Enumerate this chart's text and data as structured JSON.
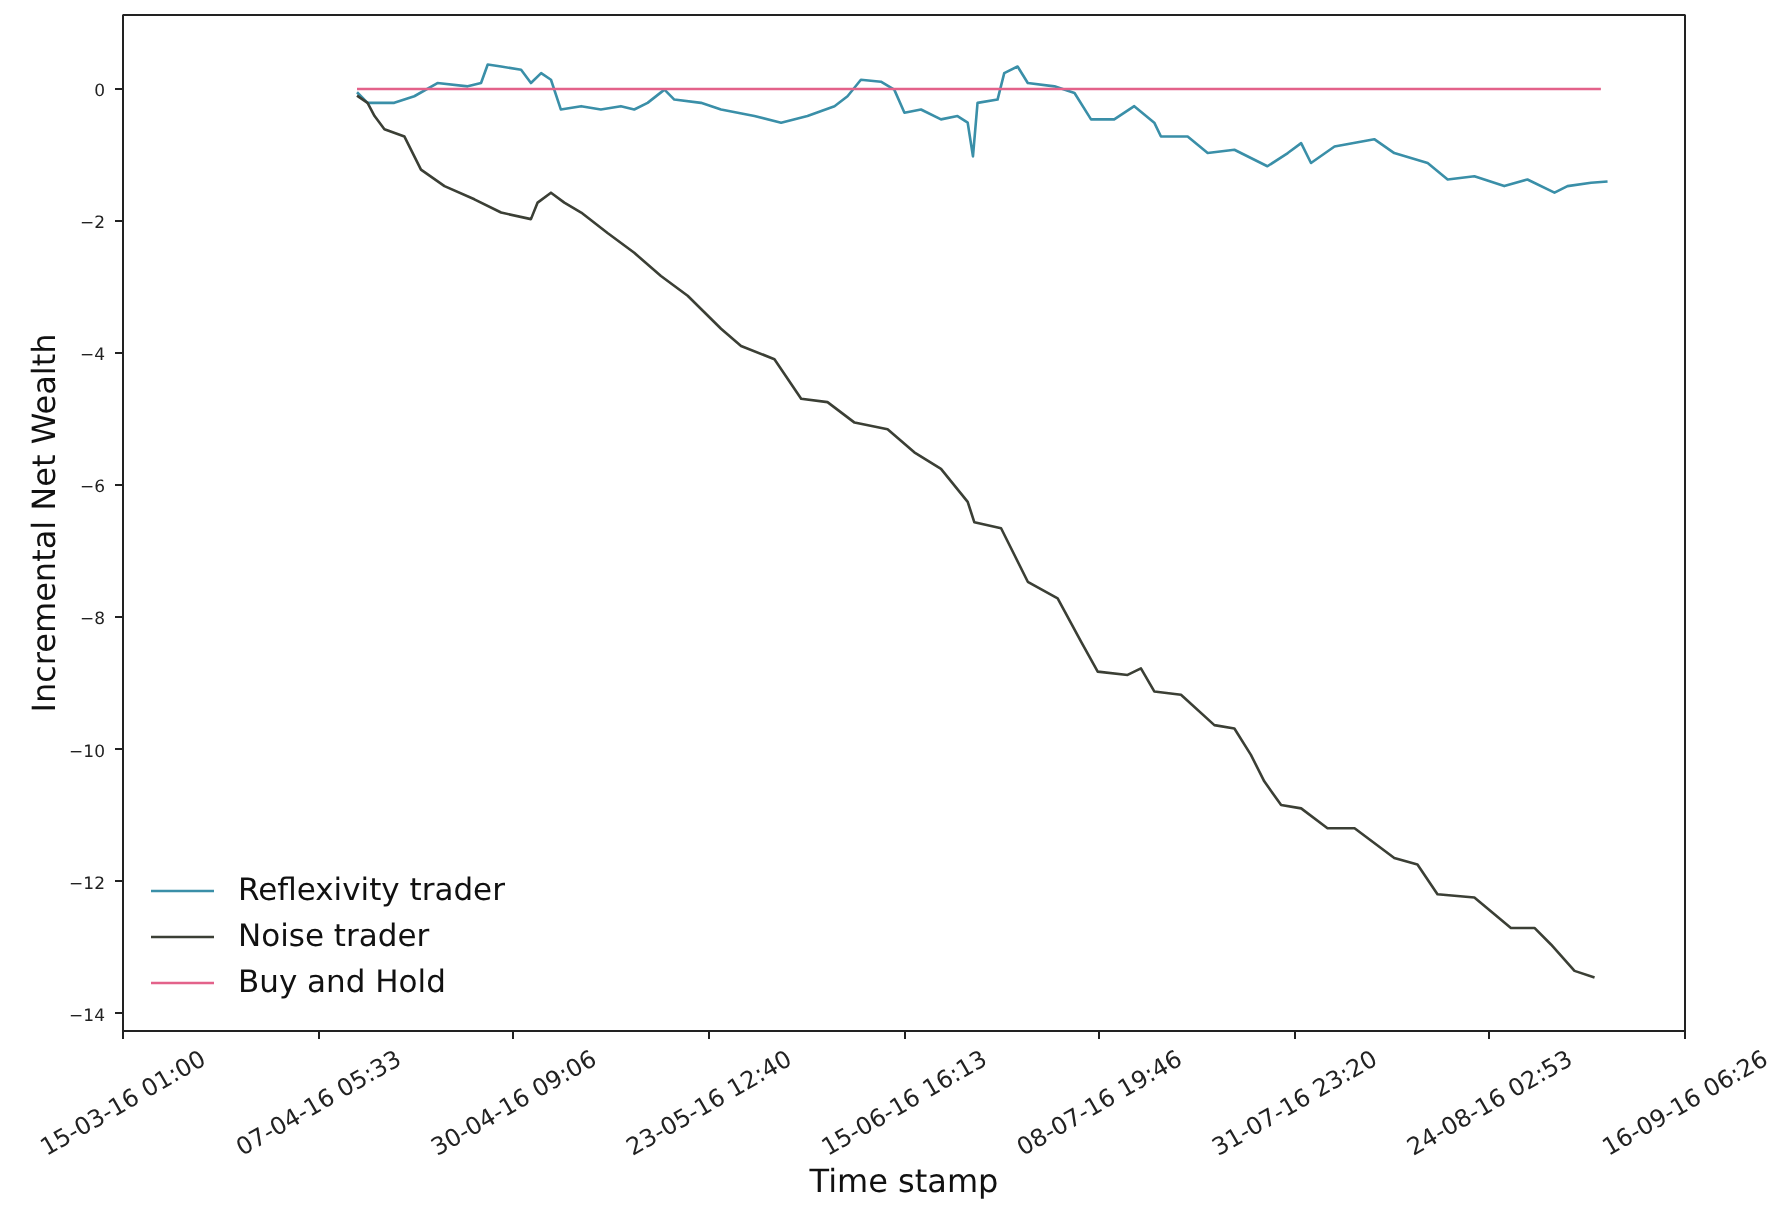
{
  "chart_data": {
    "type": "line",
    "xlabel": "Time stamp",
    "ylabel": "Incremental Net Wealth",
    "xlim": [
      "2016-03-15T01:00",
      "2016-09-16T06:26"
    ],
    "xticks": [
      {
        "value": "2016-03-15T01:00",
        "label": "15-03-16 01:00"
      },
      {
        "value": "2016-04-07T05:33",
        "label": "07-04-16 05:33"
      },
      {
        "value": "2016-04-30T09:06",
        "label": "30-04-16 09:06"
      },
      {
        "value": "2016-05-23T12:40",
        "label": "23-05-16 12:40"
      },
      {
        "value": "2016-06-15T16:13",
        "label": "15-06-16 16:13"
      },
      {
        "value": "2016-07-08T19:46",
        "label": "08-07-16 19:46"
      },
      {
        "value": "2016-07-31T23:20",
        "label": "31-07-16 23:20"
      },
      {
        "value": "2016-08-24T02:53",
        "label": "24-08-16 02:53"
      },
      {
        "value": "2016-09-16T06:26",
        "label": "16-09-16 06:26"
      }
    ],
    "ylim": [
      -14.26,
      1.12
    ],
    "yticks": [
      {
        "value": -14,
        "label": "−14"
      },
      {
        "value": -12,
        "label": "−12"
      },
      {
        "value": -10,
        "label": "−10"
      },
      {
        "value": -8,
        "label": "−8"
      },
      {
        "value": -6,
        "label": "−6"
      },
      {
        "value": -4,
        "label": "−4"
      },
      {
        "value": -2,
        "label": "−2"
      },
      0
    ],
    "legend": "bottom left",
    "series": [
      {
        "name": "Reflexivity trader",
        "color": "#3a8fa8",
        "x": [
          "2016-04-11T19:00",
          "2016-04-13T01:00",
          "2016-04-16T05:00",
          "2016-04-18T14:00",
          "2016-04-21T08:00",
          "2016-04-24T22:00",
          "2016-04-26T12:00",
          "2016-04-27T07:00",
          "2016-04-28T21:00",
          "2016-05-01T06:00",
          "2016-05-02T10:00",
          "2016-05-03T15:00",
          "2016-05-04T19:00",
          "2016-05-05T23:00",
          "2016-05-08T09:00",
          "2016-05-10T17:00",
          "2016-05-13T02:00",
          "2016-05-14T16:00",
          "2016-05-16T06:00",
          "2016-05-18T06:00",
          "2016-05-19T10:00",
          "2016-05-22T14:00",
          "2016-05-24T23:00",
          "2016-05-28T22:00",
          "2016-06-01T02:00",
          "2016-06-04T05:00",
          "2016-06-07T10:00",
          "2016-06-08T23:00",
          "2016-06-10T13:00",
          "2016-06-12T22:00",
          "2016-06-14T12:00",
          "2016-06-15T17:00",
          "2016-06-17T16:00",
          "2016-06-20T01:00",
          "2016-06-22T00:00",
          "2016-06-23T05:00",
          "2016-06-23T20:00",
          "2016-06-24T09:00",
          "2016-06-26T18:00",
          "2016-06-27T13:00",
          "2016-06-29T03:00",
          "2016-06-30T08:00",
          "2016-07-03T12:00",
          "2016-07-05T21:00",
          "2016-07-07T20:00",
          "2016-07-10T14:00",
          "2016-07-12T23:00",
          "2016-07-15T08:00",
          "2016-07-16T03:00",
          "2016-07-19T07:00",
          "2016-07-21T16:00",
          "2016-07-24T20:00",
          "2016-07-28T18:00",
          "2016-07-31T04:00",
          "2016-08-01T18:00",
          "2016-08-02T22:00",
          "2016-08-05T17:00",
          "2016-08-10T10:00",
          "2016-08-12T19:00",
          "2016-08-16T18:00",
          "2016-08-19T03:00",
          "2016-08-22T07:00",
          "2016-08-25T20:00",
          "2016-08-28T14:00",
          "2016-08-31T19:00",
          "2016-09-02T08:00",
          "2016-09-05T03:00",
          "2016-09-07T02:00"
        ],
        "values": [
          -0.05,
          -0.21,
          -0.21,
          -0.11,
          0.09,
          0.04,
          0.09,
          0.37,
          0.34,
          0.29,
          0.09,
          0.24,
          0.14,
          -0.31,
          -0.26,
          -0.31,
          -0.26,
          -0.31,
          -0.21,
          -0.01,
          -0.16,
          -0.21,
          -0.31,
          -0.41,
          -0.51,
          -0.41,
          -0.26,
          -0.11,
          0.14,
          0.11,
          -0.01,
          -0.36,
          -0.31,
          -0.46,
          -0.41,
          -0.51,
          -1.02,
          -0.21,
          -0.16,
          0.24,
          0.34,
          0.09,
          0.04,
          -0.06,
          -0.46,
          -0.46,
          -0.26,
          -0.51,
          -0.72,
          -0.72,
          -0.97,
          -0.92,
          -1.17,
          -0.97,
          -0.82,
          -1.12,
          -0.87,
          -0.76,
          -0.97,
          -1.12,
          -1.37,
          -1.32,
          -1.47,
          -1.37,
          -1.57,
          -1.47,
          -1.42,
          -1.4
        ]
      },
      {
        "name": "Noise trader",
        "color": "#3b3f35",
        "x": [
          "2016-04-11T19:00",
          "2016-04-13T01:00",
          "2016-04-13T21:00",
          "2016-04-15T01:00",
          "2016-04-17T10:00",
          "2016-04-19T09:00",
          "2016-04-22T04:00",
          "2016-04-25T17:00",
          "2016-04-28T21:00",
          "2016-05-02T10:00",
          "2016-05-03T05:00",
          "2016-05-04T19:00",
          "2016-05-06T09:00",
          "2016-05-08T09:00",
          "2016-05-11T12:00",
          "2016-05-14T16:00",
          "2016-05-17T20:00",
          "2016-05-21T00:00",
          "2016-05-24T23:00",
          "2016-05-27T08:00",
          "2016-05-31T07:00",
          "2016-06-03T11:00",
          "2016-06-06T14:00",
          "2016-06-09T19:00",
          "2016-06-13T17:00",
          "2016-06-16T21:00",
          "2016-06-20T01:00",
          "2016-06-23T05:00",
          "2016-06-24T00:00",
          "2016-06-27T04:00",
          "2016-06-30T08:00",
          "2016-07-03T21:00",
          "2016-07-06T16:00",
          "2016-07-08T15:00",
          "2016-07-12T04:00",
          "2016-07-13T18:00",
          "2016-07-15T08:00",
          "2016-07-18T12:00",
          "2016-07-22T11:00",
          "2016-07-24T20:00",
          "2016-07-26T19:00",
          "2016-07-28T09:00",
          "2016-07-30T09:00",
          "2016-08-01T18:00",
          "2016-08-04T21:00",
          "2016-08-08T02:00",
          "2016-08-12T19:00",
          "2016-08-15T13:00",
          "2016-08-17T22:00",
          "2016-08-22T07:00",
          "2016-08-26T15:00",
          "2016-08-29T10:00",
          "2016-08-31T09:00",
          "2016-09-03T04:00",
          "2016-09-05T13:00"
        ],
        "values": [
          -0.1,
          -0.21,
          -0.41,
          -0.61,
          -0.72,
          -1.22,
          -1.47,
          -1.67,
          -1.87,
          -1.97,
          -1.72,
          -1.57,
          -1.72,
          -1.87,
          -2.18,
          -2.48,
          -2.83,
          -3.13,
          -3.63,
          -3.89,
          -4.09,
          -4.69,
          -4.74,
          -5.05,
          -5.15,
          -5.5,
          -5.75,
          -6.25,
          -6.56,
          -6.65,
          -7.46,
          -7.71,
          -8.37,
          -8.82,
          -8.87,
          -8.77,
          -9.12,
          -9.17,
          -9.63,
          -9.68,
          -10.08,
          -10.48,
          -10.84,
          -10.89,
          -11.19,
          -11.19,
          -11.64,
          -11.74,
          -12.19,
          -12.24,
          -12.7,
          -12.7,
          -12.95,
          -13.35,
          -13.45
        ]
      },
      {
        "name": "Buy and Hold",
        "color": "#e3628a",
        "x": [
          "2016-04-11T19:00",
          "2016-06-24T00:00",
          "2016-09-06T07:00"
        ],
        "values": [
          0,
          0,
          0
        ]
      }
    ]
  }
}
